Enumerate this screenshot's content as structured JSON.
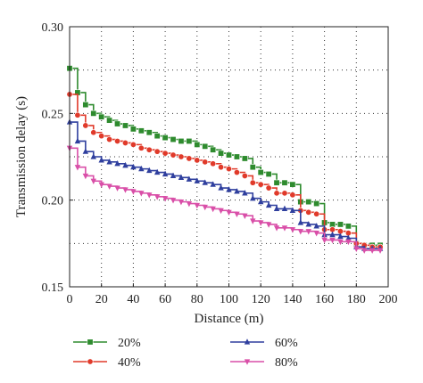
{
  "chart_data": {
    "type": "line",
    "xlabel": "Distance (m)",
    "ylabel": "Transmission delay (s)",
    "xlim": [
      0,
      200
    ],
    "ylim": [
      0.15,
      0.3
    ],
    "x_ticks": [
      "0",
      "20",
      "40",
      "60",
      "80",
      "100",
      "120",
      "140",
      "160",
      "180",
      "200"
    ],
    "y_ticks": [
      "0.15",
      "0.20",
      "0.25",
      "0.30"
    ],
    "grid": "dotted",
    "legend_position": "bottom",
    "x": [
      0,
      5,
      10,
      15,
      20,
      25,
      30,
      35,
      40,
      45,
      50,
      55,
      60,
      65,
      70,
      75,
      80,
      85,
      90,
      95,
      100,
      105,
      110,
      115,
      120,
      125,
      130,
      135,
      140,
      145,
      150,
      155,
      160,
      165,
      170,
      175,
      180,
      185,
      190,
      195
    ],
    "series": [
      {
        "name": "20%",
        "color": "#2e8b2e",
        "marker": "square",
        "values": [
          0.276,
          0.262,
          0.255,
          0.25,
          0.248,
          0.246,
          0.244,
          0.243,
          0.241,
          0.24,
          0.239,
          0.237,
          0.236,
          0.235,
          0.234,
          0.234,
          0.232,
          0.231,
          0.229,
          0.227,
          0.226,
          0.225,
          0.224,
          0.219,
          0.216,
          0.215,
          0.21,
          0.21,
          0.209,
          0.199,
          0.199,
          0.198,
          0.187,
          0.186,
          0.186,
          0.185,
          0.175,
          0.174,
          0.174,
          0.174
        ]
      },
      {
        "name": "40%",
        "color": "#e03a2a",
        "marker": "circle",
        "values": [
          0.261,
          0.249,
          0.243,
          0.239,
          0.237,
          0.235,
          0.234,
          0.233,
          0.232,
          0.23,
          0.229,
          0.228,
          0.227,
          0.226,
          0.225,
          0.224,
          0.223,
          0.222,
          0.221,
          0.219,
          0.218,
          0.216,
          0.214,
          0.21,
          0.209,
          0.207,
          0.204,
          0.204,
          0.203,
          0.194,
          0.193,
          0.192,
          0.183,
          0.183,
          0.182,
          0.181,
          0.175,
          0.174,
          0.173,
          0.173
        ]
      },
      {
        "name": "60%",
        "color": "#2f3f9e",
        "marker": "triangle",
        "values": [
          0.245,
          0.234,
          0.228,
          0.225,
          0.223,
          0.222,
          0.221,
          0.22,
          0.219,
          0.218,
          0.217,
          0.216,
          0.215,
          0.214,
          0.213,
          0.212,
          0.211,
          0.21,
          0.209,
          0.207,
          0.206,
          0.205,
          0.204,
          0.201,
          0.199,
          0.197,
          0.195,
          0.195,
          0.194,
          0.187,
          0.186,
          0.185,
          0.18,
          0.18,
          0.179,
          0.178,
          0.173,
          0.172,
          0.172,
          0.172
        ]
      },
      {
        "name": "80%",
        "color": "#d94fa8",
        "marker": "triangle-down",
        "values": [
          0.23,
          0.219,
          0.214,
          0.211,
          0.209,
          0.208,
          0.207,
          0.206,
          0.205,
          0.204,
          0.203,
          0.202,
          0.201,
          0.2,
          0.199,
          0.198,
          0.197,
          0.196,
          0.195,
          0.194,
          0.193,
          0.192,
          0.191,
          0.188,
          0.187,
          0.186,
          0.184,
          0.184,
          0.183,
          0.182,
          0.182,
          0.181,
          0.177,
          0.177,
          0.176,
          0.176,
          0.172,
          0.171,
          0.171,
          0.171
        ]
      }
    ]
  }
}
